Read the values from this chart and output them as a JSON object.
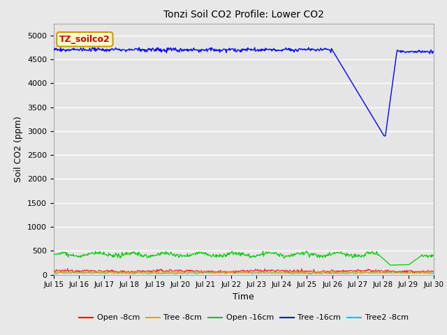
{
  "title": "Tonzi Soil CO2 Profile: Lower CO2",
  "xlabel": "Time",
  "ylabel": "Soil CO2 (ppm)",
  "ylim": [
    0,
    5250
  ],
  "yticks": [
    0,
    500,
    1000,
    1500,
    2000,
    2500,
    3000,
    3500,
    4000,
    4500,
    5000
  ],
  "fig_bg": "#e8e8e8",
  "plot_bg": "#e5e5e5",
  "legend_label": "TZ_soilco2",
  "legend_box_facecolor": "#ffffcc",
  "legend_box_edgecolor": "#cc9900",
  "colors": {
    "open_8cm": "#ff0000",
    "tree_8cm": "#ff9900",
    "open_16cm": "#00cc00",
    "tree_16cm": "#0000ff",
    "tree2_8cm": "#00cccc"
  },
  "labels": {
    "open_8cm": "Open -8cm",
    "tree_8cm": "Tree -8cm",
    "open_16cm": "Open -16cm",
    "tree_16cm": "Tree -16cm",
    "tree2_8cm": "Tree2 -8cm"
  },
  "n_points": 600,
  "x_start": 15.0,
  "x_end": 30.0,
  "xtick_positions": [
    15,
    16,
    17,
    18,
    19,
    20,
    21,
    22,
    23,
    24,
    25,
    26,
    27,
    28,
    29,
    30
  ],
  "xtick_labels": [
    "Jul 15",
    "Jul 16",
    "Jul 17",
    "Jul 18",
    "Jul 19",
    "Jul 20",
    "Jul 21",
    "Jul 22",
    "Jul 23",
    "Jul 24",
    "Jul 25",
    "Jul 26",
    "Jul 27",
    "Jul 28",
    "Jul 29",
    "Jul 30"
  ]
}
